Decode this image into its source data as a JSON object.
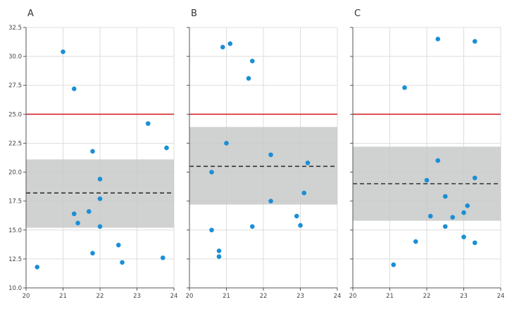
{
  "chart_data": [
    {
      "type": "scatter",
      "title": "A",
      "xlim": [
        20,
        24
      ],
      "ylim": [
        10.0,
        32.5
      ],
      "x_ticks": [
        "20",
        "21",
        "22",
        "23",
        "24"
      ],
      "y_ticks": [
        "10.0",
        "12.5",
        "15.0",
        "17.5",
        "20.0",
        "22.5",
        "25.0",
        "27.5",
        "30.0",
        "32.5"
      ],
      "grid": true,
      "reference_line": 25.0,
      "mean_line": 18.2,
      "band": [
        15.2,
        21.1
      ],
      "points": [
        {
          "x": 20.3,
          "y": 11.8
        },
        {
          "x": 21.0,
          "y": 30.4
        },
        {
          "x": 21.3,
          "y": 27.2
        },
        {
          "x": 21.3,
          "y": 16.4
        },
        {
          "x": 21.4,
          "y": 15.6
        },
        {
          "x": 21.7,
          "y": 16.6
        },
        {
          "x": 21.8,
          "y": 21.8
        },
        {
          "x": 21.8,
          "y": 13.0
        },
        {
          "x": 22.0,
          "y": 19.4
        },
        {
          "x": 22.0,
          "y": 17.7
        },
        {
          "x": 22.0,
          "y": 15.3
        },
        {
          "x": 22.5,
          "y": 13.7
        },
        {
          "x": 22.6,
          "y": 12.2
        },
        {
          "x": 23.3,
          "y": 24.2
        },
        {
          "x": 23.7,
          "y": 12.6
        },
        {
          "x": 23.8,
          "y": 22.1
        }
      ]
    },
    {
      "type": "scatter",
      "title": "B",
      "xlim": [
        20,
        24
      ],
      "ylim": [
        10.0,
        32.5
      ],
      "x_ticks": [
        "20",
        "21",
        "22",
        "23",
        "24"
      ],
      "grid": true,
      "reference_line": 25.0,
      "mean_line": 20.5,
      "band": [
        17.2,
        23.9
      ],
      "points": [
        {
          "x": 20.6,
          "y": 20.0
        },
        {
          "x": 20.6,
          "y": 15.0
        },
        {
          "x": 20.8,
          "y": 13.2
        },
        {
          "x": 20.8,
          "y": 12.7
        },
        {
          "x": 20.9,
          "y": 30.8
        },
        {
          "x": 21.0,
          "y": 22.5
        },
        {
          "x": 21.1,
          "y": 31.1
        },
        {
          "x": 21.6,
          "y": 28.1
        },
        {
          "x": 21.7,
          "y": 29.6
        },
        {
          "x": 21.7,
          "y": 15.3
        },
        {
          "x": 22.2,
          "y": 21.5
        },
        {
          "x": 22.2,
          "y": 17.5
        },
        {
          "x": 22.9,
          "y": 16.2
        },
        {
          "x": 23.0,
          "y": 15.4
        },
        {
          "x": 23.1,
          "y": 18.2
        },
        {
          "x": 23.2,
          "y": 20.8
        }
      ]
    },
    {
      "type": "scatter",
      "title": "C",
      "xlim": [
        20,
        24
      ],
      "ylim": [
        10.0,
        32.5
      ],
      "x_ticks": [
        "20",
        "21",
        "22",
        "23",
        "24"
      ],
      "grid": true,
      "reference_line": 25.0,
      "mean_line": 19.0,
      "band": [
        15.8,
        22.2
      ],
      "points": [
        {
          "x": 21.1,
          "y": 12.0
        },
        {
          "x": 21.4,
          "y": 27.3
        },
        {
          "x": 21.7,
          "y": 14.0
        },
        {
          "x": 22.0,
          "y": 19.3
        },
        {
          "x": 22.1,
          "y": 16.2
        },
        {
          "x": 22.3,
          "y": 31.5
        },
        {
          "x": 22.3,
          "y": 21.0
        },
        {
          "x": 22.5,
          "y": 17.9
        },
        {
          "x": 22.5,
          "y": 15.3
        },
        {
          "x": 22.7,
          "y": 16.1
        },
        {
          "x": 23.0,
          "y": 16.5
        },
        {
          "x": 23.0,
          "y": 14.4
        },
        {
          "x": 23.1,
          "y": 17.1
        },
        {
          "x": 23.3,
          "y": 31.3
        },
        {
          "x": 23.3,
          "y": 19.5
        },
        {
          "x": 23.3,
          "y": 13.9
        }
      ]
    }
  ],
  "colors": {
    "point": "#1a8fd6",
    "reference_line": "#d62728",
    "mean_line": "#333333",
    "band": "#c8c9c9",
    "grid": "#dddddd",
    "axis": "#555555"
  }
}
